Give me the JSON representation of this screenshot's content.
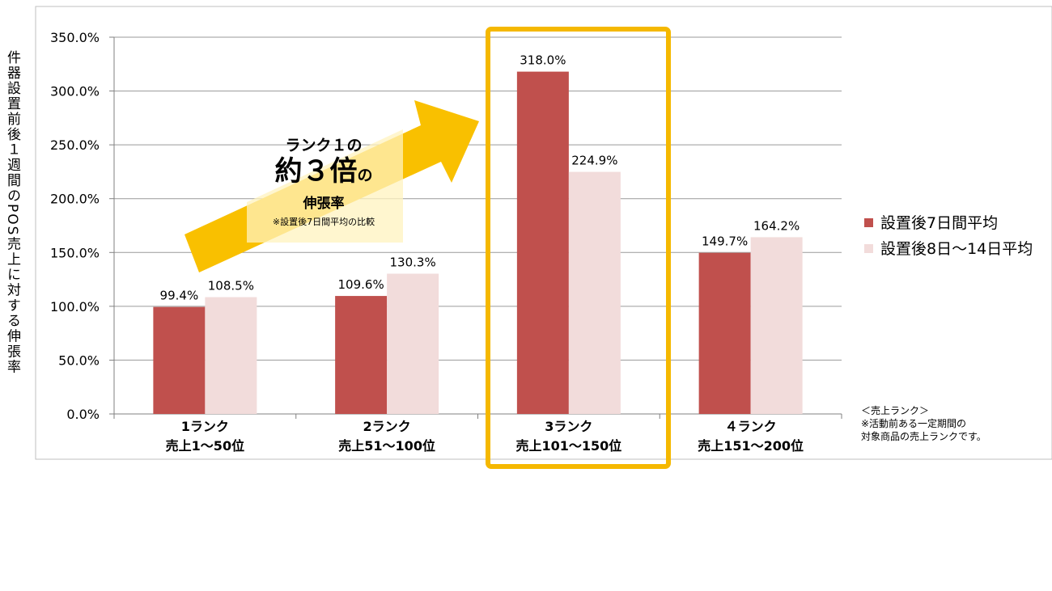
{
  "chart_data": {
    "type": "bar",
    "categories": [
      [
        "1ランク",
        "売上1～50位"
      ],
      [
        "2ランク",
        "売上51～100位"
      ],
      [
        "3ランク",
        "売上101～150位"
      ],
      [
        "４ランク",
        "売上151～200位"
      ]
    ],
    "series": [
      {
        "name": "設置後7日間平均",
        "values": [
          99.4,
          109.6,
          318.0,
          149.7
        ],
        "labels": [
          "99.4%",
          "109.6%",
          "318.0%",
          "149.7%"
        ],
        "color": "#c0504d"
      },
      {
        "name": "設置後8日～14日平均",
        "values": [
          108.5,
          130.3,
          224.9,
          164.2
        ],
        "labels": [
          "108.5%",
          "130.3%",
          "224.9%",
          "164.2%"
        ],
        "color": "#f2dcdb"
      }
    ],
    "ylabel": "件器設置前後１週間のPOS売上に対する伸張率",
    "ylim": [
      0,
      350
    ],
    "yticks": [
      0,
      50,
      100,
      150,
      200,
      250,
      300,
      350
    ],
    "ytick_labels": [
      "0.0%",
      "50.0%",
      "100.0%",
      "150.0%",
      "200.0%",
      "250.0%",
      "300.0%",
      "350.0%"
    ],
    "grid": true,
    "legend_position": "right",
    "highlight_category_index": 2,
    "highlight_color": "#f5b800"
  },
  "callout": {
    "line1": "ランク１の",
    "line2_main": "約３倍",
    "line2_suffix": "の",
    "line3": "伸張率",
    "line4": "※設置後7日間平均の比較"
  },
  "note": {
    "line1": "＜売上ランク＞",
    "line2": "※活動前ある一定期間の",
    "line3": "対象商品の売上ランクです。"
  }
}
